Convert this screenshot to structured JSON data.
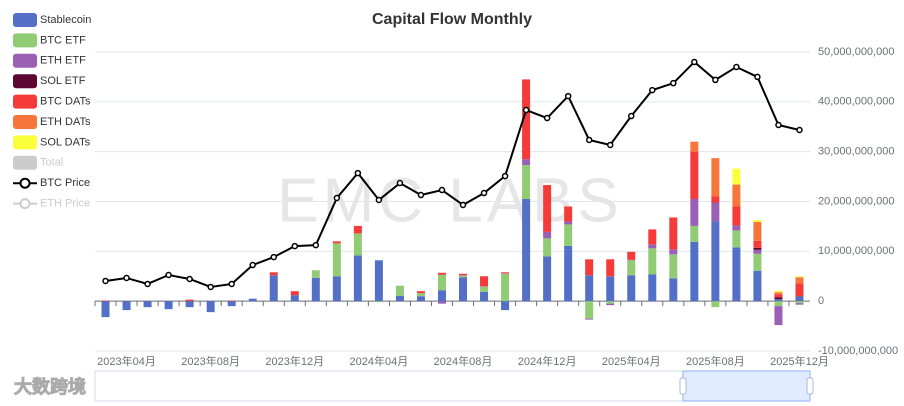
{
  "chart_data": {
    "type": "bar",
    "title": "Capital Flow Monthly",
    "watermark": "EMC LABS",
    "logo_text": "大数跨境",
    "categories": [
      null,
      "2023年04月",
      null,
      null,
      null,
      "2023年08月",
      null,
      null,
      null,
      "2023年12月",
      null,
      null,
      null,
      "2024年04月",
      null,
      null,
      null,
      "2024年08月",
      null,
      null,
      null,
      "2024年12月",
      null,
      null,
      null,
      "2025年04月",
      null,
      null,
      null,
      "2025年08月",
      null,
      null,
      null,
      "2025年12月"
    ],
    "ylim": [
      -10000000000,
      50000000000
    ],
    "yticks": [
      {
        "value": -10000000000,
        "label": "-10,000,000,000"
      },
      0,
      {
        "value": 10000000000,
        "label": "10,000,000,000"
      },
      {
        "value": 20000000000,
        "label": "20,000,000,000"
      },
      {
        "value": 30000000000,
        "label": "30,000,000,000"
      },
      {
        "value": 40000000000,
        "label": "40,000,000,000"
      },
      {
        "value": 50000000000,
        "label": "50,000,000,000"
      }
    ],
    "y2lim": [
      0,
      120000
    ],
    "grid": true,
    "legend": "left",
    "series": [
      {
        "name": "Stablecoin",
        "type": "bar",
        "color": "#5470c6",
        "values": [
          -3200000000.0,
          -1800000000.0,
          -1200000000.0,
          -1600000000.0,
          -1200000000.0,
          -2200000000.0,
          -1000000000.0,
          500000000.0,
          5200000000.0,
          1200000000.0,
          4700000000.0,
          5000000000.0,
          9200000000.0,
          8200000000.0,
          1100000000.0,
          1000000000.0,
          2200000000.0,
          4800000000.0,
          1900000000.0,
          -1800000000.0,
          20500000000.0,
          9000000000.0,
          11100000000.0,
          5200000000.0,
          5000000000.0,
          5200000000.0,
          5400000000.0,
          4600000000.0,
          11900000000.0,
          16000000000.0,
          10800000000.0,
          6100000000.0,
          400000000.0,
          900000000.0
        ]
      },
      {
        "name": "BTC ETF",
        "type": "bar",
        "color": "#91cc75",
        "values": [
          null,
          null,
          null,
          null,
          null,
          null,
          null,
          null,
          null,
          null,
          1500000000.0,
          6600000000.0,
          4400000000.0,
          -200000000.0,
          2000000000.0,
          600000000.0,
          3100000000.0,
          300000000.0,
          1000000000.0,
          5500000000.0,
          6800000000.0,
          3600000000.0,
          4300000000.0,
          -3500000000.0,
          -500000000.0,
          3000000000.0,
          5200000000.0,
          4800000000.0,
          3200000000.0,
          -1200000000.0,
          3400000000.0,
          3400000000.0,
          -1000000000.0,
          -400000000.0
        ]
      },
      {
        "name": "ETH ETF",
        "type": "bar",
        "color": "#9a60b4",
        "values": [
          null,
          null,
          null,
          null,
          null,
          null,
          null,
          null,
          null,
          null,
          null,
          null,
          null,
          null,
          null,
          null,
          -500000000.0,
          100000000.0,
          100000000.0,
          100000000.0,
          1200000000.0,
          1300000000.0,
          600000000.0,
          -200000000.0,
          -300000000.0,
          100000000.0,
          800000000.0,
          1000000000.0,
          5400000000.0,
          3800000000.0,
          1000000000.0,
          800000000.0,
          -3800000000.0,
          -300000000.0
        ]
      },
      {
        "name": "SOL ETF",
        "type": "bar",
        "color": "#5c0632",
        "values": [
          null,
          null,
          null,
          null,
          null,
          null,
          null,
          null,
          null,
          null,
          null,
          null,
          null,
          null,
          null,
          null,
          null,
          null,
          null,
          null,
          null,
          null,
          null,
          null,
          null,
          null,
          null,
          null,
          null,
          null,
          null,
          400000000.0,
          400000000.0,
          100000000.0
        ]
      },
      {
        "name": "BTC DATs",
        "type": "bar",
        "color": "#f53a3a",
        "values": [
          100000000.0,
          0,
          0,
          0,
          300000000.0,
          0,
          100000000.0,
          0,
          600000000.0,
          800000000.0,
          0,
          400000000.0,
          1500000000.0,
          0,
          0,
          400000000.0,
          400000000.0,
          300000000.0,
          2000000000.0,
          200000000.0,
          16000000000.0,
          9400000000.0,
          3000000000.0,
          3200000000.0,
          3400000000.0,
          1600000000.0,
          3000000000.0,
          6400000000.0,
          9500000000.0,
          1200000000.0,
          3800000000.0,
          1400000000.0,
          600000000.0,
          2600000000.0
        ]
      },
      {
        "name": "ETH DATs",
        "type": "bar",
        "color": "#f7743a",
        "values": [
          null,
          null,
          null,
          null,
          null,
          null,
          null,
          null,
          null,
          null,
          null,
          null,
          null,
          null,
          null,
          null,
          null,
          null,
          null,
          null,
          null,
          null,
          null,
          null,
          null,
          null,
          null,
          null,
          2000000000.0,
          7700000000.0,
          4400000000.0,
          3800000000.0,
          400000000.0,
          1200000000.0
        ]
      },
      {
        "name": "SOL DATs",
        "type": "bar",
        "color": "#fbff3a",
        "values": [
          null,
          null,
          null,
          null,
          null,
          null,
          null,
          null,
          null,
          null,
          null,
          null,
          null,
          null,
          null,
          null,
          null,
          null,
          null,
          null,
          null,
          null,
          null,
          null,
          null,
          null,
          null,
          null,
          null,
          null,
          3200000000.0,
          400000000.0,
          300000000.0,
          200000000.0
        ]
      },
      {
        "name": "Total",
        "type": "bar",
        "color": "#cccccc",
        "hidden": true
      },
      {
        "name": "BTC Price",
        "type": "line",
        "axis": "y2",
        "color": "#000000",
        "values": [
          28100,
          29300,
          26900,
          30500,
          28900,
          25700,
          26900,
          34500,
          37700,
          42100,
          42500,
          61400,
          71400,
          60600,
          67400,
          62600,
          64600,
          58600,
          63400,
          70200,
          96700,
          93500,
          102300,
          84700,
          82700,
          94300,
          104700,
          107500,
          116000,
          108800,
          114000,
          110000,
          90700,
          88700
        ]
      },
      {
        "name": "ETH Price",
        "type": "line",
        "axis": "y2",
        "color": "#cccccc",
        "hidden": true
      }
    ]
  }
}
